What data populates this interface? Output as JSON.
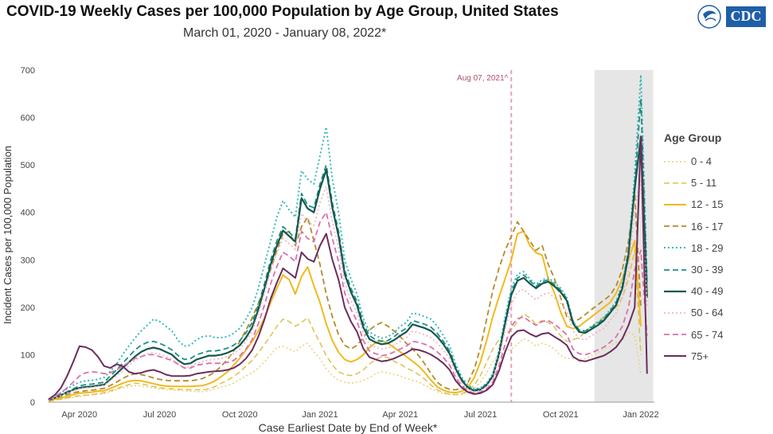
{
  "title": "COVID-19 Weekly Cases per 100,000 Population by Age Group, United States",
  "subtitle": "March 01, 2020 - January 08, 2022*",
  "logo": {
    "text": "CDC",
    "icon": "hhs-eagle-icon"
  },
  "legend": {
    "title": "Age Group"
  },
  "chart_data": {
    "type": "line",
    "xlabel": "Case Earliest Date by End of Week*",
    "ylabel": "Incident Cases per 100,000 Population",
    "ylim": [
      0,
      700
    ],
    "yticks": [
      0,
      100,
      200,
      300,
      400,
      500,
      600,
      700
    ],
    "xticks": [
      {
        "label": "Apr 2020",
        "week": 5
      },
      {
        "label": "Jul 2020",
        "week": 18
      },
      {
        "label": "Oct 2020",
        "week": 31
      },
      {
        "label": "Jan 2021",
        "week": 44
      },
      {
        "label": "Apr 2021",
        "week": 57
      },
      {
        "label": "Jul 2021",
        "week": 70
      },
      {
        "label": "Oct 2021",
        "week": 83
      },
      {
        "label": "Jan 2022",
        "week": 96
      }
    ],
    "x_start": "2020-03-07",
    "x_interval": "weekly",
    "grid": false,
    "legend_position": "right",
    "annotation": {
      "label": "Aug 07, 2021^",
      "week": 75,
      "color": "#e7a1b3"
    },
    "shaded_region": {
      "from_week": 88.5,
      "to_week": 98,
      "color": "#e6e6e6"
    },
    "series": [
      {
        "name": "0 - 4",
        "color": "#e9d077",
        "dash": "2,3",
        "width": 1.5,
        "values": [
          2,
          4,
          6,
          8,
          10,
          12,
          14,
          15,
          17,
          18,
          22,
          26,
          30,
          33,
          35,
          34,
          32,
          30,
          28,
          27,
          26,
          25,
          24,
          23,
          22,
          22,
          24,
          28,
          32,
          35,
          40,
          48,
          55,
          62,
          72,
          85,
          100,
          115,
          118,
          112,
          106,
          118,
          124,
          106,
          92,
          70,
          56,
          46,
          42,
          40,
          42,
          46,
          52,
          60,
          64,
          62,
          58,
          55,
          50,
          46,
          42,
          36,
          28,
          22,
          18,
          16,
          15,
          16,
          20,
          28,
          42,
          62,
          85,
          100,
          108,
          112,
          122,
          134,
          128,
          118,
          124,
          120,
          112,
          98,
          92,
          92,
          90,
          92,
          98,
          104,
          112,
          118,
          126,
          132,
          146,
          142,
          60
        ]
      },
      {
        "name": "5 - 11",
        "color": "#ddc14e",
        "dash": "7,4",
        "width": 1.5,
        "values": [
          2,
          4,
          6,
          9,
          12,
          14,
          15,
          16,
          18,
          20,
          24,
          28,
          33,
          37,
          40,
          39,
          36,
          33,
          30,
          29,
          28,
          27,
          27,
          26,
          26,
          26,
          28,
          33,
          40,
          46,
          54,
          64,
          76,
          88,
          104,
          122,
          140,
          160,
          175,
          170,
          160,
          168,
          178,
          150,
          125,
          98,
          78,
          64,
          58,
          56,
          60,
          68,
          80,
          90,
          96,
          94,
          86,
          80,
          72,
          66,
          58,
          48,
          36,
          26,
          20,
          17,
          16,
          18,
          24,
          36,
          56,
          84,
          112,
          132,
          144,
          152,
          170,
          186,
          178,
          164,
          172,
          168,
          158,
          140,
          128,
          132,
          136,
          148,
          160,
          170,
          180,
          190,
          200,
          220,
          260,
          320,
          100
        ]
      },
      {
        "name": "12 - 15",
        "color": "#f2b91f",
        "dash": "",
        "width": 2,
        "values": [
          3,
          6,
          9,
          12,
          16,
          19,
          20,
          21,
          23,
          24,
          29,
          34,
          40,
          44,
          46,
          45,
          42,
          39,
          36,
          34,
          33,
          33,
          33,
          33,
          34,
          35,
          39,
          45,
          54,
          64,
          78,
          93,
          110,
          128,
          150,
          178,
          210,
          240,
          268,
          258,
          228,
          265,
          285,
          245,
          210,
          165,
          130,
          105,
          90,
          85,
          90,
          100,
          115,
          125,
          130,
          124,
          115,
          106,
          96,
          86,
          76,
          62,
          46,
          32,
          25,
          21,
          20,
          23,
          32,
          52,
          85,
          130,
          180,
          222,
          260,
          300,
          355,
          360,
          330,
          315,
          310,
          260,
          230,
          190,
          160,
          155,
          160,
          170,
          180,
          190,
          200,
          210,
          230,
          260,
          300,
          340,
          160
        ]
      },
      {
        "name": "16 - 17",
        "color": "#b38b2b",
        "dash": "7,4",
        "width": 1.8,
        "values": [
          4,
          8,
          12,
          16,
          20,
          22,
          24,
          25,
          27,
          29,
          35,
          42,
          50,
          56,
          60,
          58,
          55,
          51,
          48,
          46,
          45,
          45,
          45,
          45,
          47,
          50,
          56,
          64,
          76,
          90,
          108,
          128,
          152,
          178,
          208,
          240,
          280,
          320,
          355,
          360,
          330,
          370,
          390,
          340,
          290,
          228,
          180,
          142,
          120,
          112,
          120,
          136,
          152,
          162,
          168,
          160,
          150,
          138,
          124,
          112,
          98,
          80,
          60,
          42,
          32,
          27,
          26,
          30,
          42,
          70,
          115,
          175,
          235,
          282,
          320,
          350,
          380,
          360,
          340,
          320,
          330,
          290,
          260,
          220,
          180,
          170,
          175,
          185,
          195,
          205,
          215,
          225,
          245,
          280,
          340,
          440,
          200
        ]
      },
      {
        "name": "18 - 29",
        "color": "#35b9b7",
        "dash": "2,3",
        "width": 2,
        "values": [
          6,
          12,
          20,
          28,
          36,
          42,
          45,
          46,
          48,
          52,
          65,
          80,
          100,
          118,
          135,
          150,
          162,
          175,
          170,
          160,
          150,
          130,
          118,
          120,
          132,
          138,
          140,
          136,
          136,
          138,
          145,
          156,
          175,
          200,
          240,
          290,
          340,
          390,
          425,
          405,
          390,
          488,
          470,
          460,
          520,
          580,
          470,
          400,
          300,
          260,
          228,
          176,
          148,
          140,
          135,
          138,
          146,
          160,
          168,
          188,
          185,
          180,
          175,
          160,
          140,
          118,
          80,
          52,
          35,
          28,
          30,
          40,
          60,
          110,
          180,
          240,
          270,
          275,
          260,
          248,
          258,
          262,
          252,
          240,
          220,
          170,
          152,
          150,
          160,
          168,
          178,
          195,
          212,
          250,
          320,
          480,
          690,
          260
        ]
      },
      {
        "name": "30 - 39",
        "color": "#1f8f87",
        "dash": "7,4",
        "width": 1.8,
        "values": [
          5,
          10,
          16,
          22,
          28,
          34,
          37,
          38,
          40,
          42,
          55,
          68,
          82,
          96,
          110,
          120,
          126,
          128,
          124,
          118,
          110,
          98,
          90,
          92,
          100,
          104,
          108,
          108,
          110,
          114,
          120,
          130,
          146,
          168,
          205,
          250,
          300,
          340,
          370,
          358,
          345,
          440,
          415,
          410,
          460,
          500,
          420,
          360,
          278,
          240,
          212,
          166,
          140,
          132,
          128,
          130,
          138,
          148,
          156,
          172,
          168,
          164,
          158,
          145,
          128,
          108,
          74,
          48,
          32,
          26,
          28,
          38,
          56,
          104,
          172,
          232,
          262,
          268,
          256,
          244,
          254,
          258,
          248,
          236,
          218,
          170,
          152,
          150,
          158,
          166,
          176,
          192,
          210,
          245,
          320,
          460,
          640,
          250
        ]
      },
      {
        "name": "40 - 49",
        "color": "#14574e",
        "dash": "",
        "width": 2.2,
        "values": [
          4,
          9,
          15,
          20,
          26,
          30,
          32,
          33,
          35,
          37,
          48,
          60,
          72,
          84,
          96,
          106,
          112,
          115,
          112,
          106,
          100,
          88,
          80,
          82,
          90,
          94,
          98,
          98,
          100,
          104,
          110,
          120,
          136,
          158,
          195,
          240,
          290,
          330,
          362,
          350,
          338,
          430,
          408,
          400,
          450,
          490,
          410,
          350,
          270,
          232,
          204,
          158,
          133,
          126,
          122,
          124,
          131,
          140,
          148,
          164,
          160,
          156,
          150,
          138,
          122,
          102,
          70,
          45,
          30,
          24,
          26,
          36,
          54,
          100,
          166,
          226,
          256,
          262,
          250,
          240,
          250,
          254,
          244,
          232,
          214,
          166,
          148,
          146,
          154,
          162,
          172,
          188,
          205,
          240,
          310,
          450,
          560,
          220
        ]
      },
      {
        "name": "50 - 64",
        "color": "#f3b6c0",
        "dash": "2,3",
        "width": 1.8,
        "values": [
          4,
          9,
          14,
          19,
          24,
          28,
          30,
          31,
          33,
          35,
          45,
          55,
          66,
          77,
          88,
          96,
          102,
          104,
          101,
          96,
          90,
          80,
          73,
          75,
          82,
          86,
          89,
          90,
          92,
          96,
          102,
          112,
          128,
          150,
          186,
          230,
          276,
          314,
          345,
          334,
          322,
          398,
          380,
          372,
          420,
          455,
          380,
          325,
          252,
          215,
          188,
          145,
          122,
          116,
          112,
          114,
          120,
          128,
          136,
          150,
          146,
          142,
          136,
          124,
          110,
          92,
          62,
          40,
          27,
          22,
          24,
          33,
          50,
          92,
          152,
          206,
          232,
          238,
          226,
          216,
          226,
          230,
          220,
          208,
          192,
          150,
          134,
          132,
          140,
          148,
          156,
          172,
          188,
          220,
          280,
          410,
          470,
          200
        ]
      },
      {
        "name": "65 - 74",
        "color": "#dd6fae",
        "dash": "7,4",
        "width": 1.8,
        "values": [
          5,
          12,
          20,
          30,
          42,
          55,
          62,
          64,
          63,
          60,
          62,
          68,
          76,
          84,
          92,
          96,
          100,
          100,
          96,
          92,
          88,
          80,
          72,
          72,
          78,
          80,
          82,
          82,
          82,
          84,
          88,
          98,
          112,
          132,
          165,
          205,
          250,
          286,
          316,
          308,
          296,
          360,
          345,
          338,
          380,
          400,
          345,
          296,
          230,
          196,
          170,
          130,
          108,
          102,
          98,
          100,
          106,
          112,
          118,
          128,
          126,
          122,
          116,
          106,
          94,
          78,
          52,
          34,
          23,
          19,
          21,
          28,
          42,
          76,
          122,
          160,
          176,
          180,
          170,
          162,
          170,
          172,
          164,
          154,
          142,
          112,
          102,
          100,
          104,
          110,
          116,
          126,
          138,
          160,
          200,
          280,
          320,
          140
        ]
      },
      {
        "name": "75+",
        "color": "#6b2d5c",
        "dash": "",
        "width": 2,
        "values": [
          6,
          15,
          30,
          55,
          85,
          118,
          116,
          110,
          96,
          76,
          72,
          80,
          76,
          64,
          60,
          62,
          66,
          68,
          64,
          58,
          55,
          55,
          55,
          56,
          60,
          62,
          64,
          65,
          66,
          68,
          72,
          80,
          92,
          110,
          138,
          175,
          218,
          252,
          282,
          272,
          262,
          316,
          302,
          296,
          330,
          355,
          300,
          258,
          200,
          170,
          148,
          113,
          95,
          90,
          86,
          88,
          92,
          98,
          104,
          112,
          110,
          106,
          100,
          92,
          82,
          68,
          45,
          30,
          21,
          17,
          19,
          25,
          37,
          66,
          106,
          138,
          150,
          152,
          144,
          138,
          144,
          146,
          138,
          130,
          120,
          96,
          88,
          86,
          90,
          94,
          98,
          106,
          116,
          134,
          162,
          200,
          560,
          60
        ]
      }
    ]
  }
}
